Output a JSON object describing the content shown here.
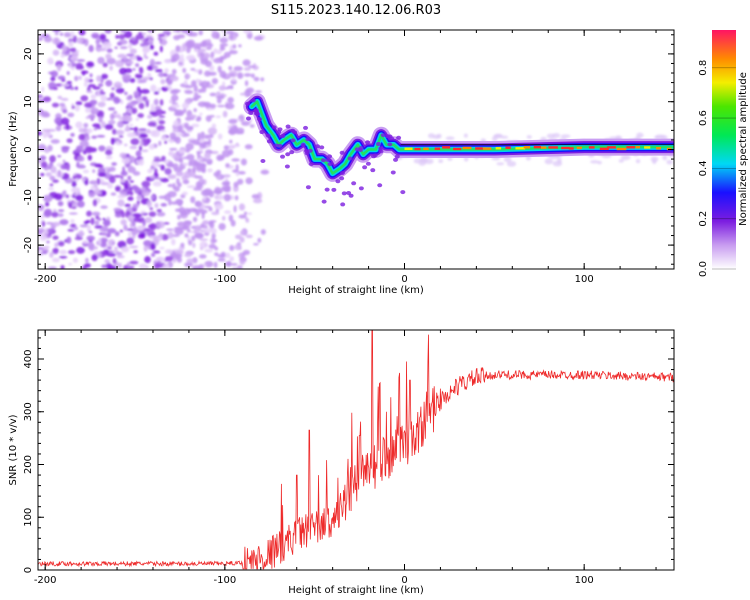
{
  "title": "S115.2023.140.12.06.R03",
  "chart_data": [
    {
      "type": "heatmap",
      "name": "spectrogram",
      "xlabel": "Height of straight line (km)",
      "ylabel": "Frequency (Hz)",
      "xlim": [
        -204,
        150
      ],
      "ylim": [
        -25,
        25
      ],
      "xticks": [
        -200,
        -100,
        0,
        100
      ],
      "yticks": [
        -20,
        -10,
        0,
        10,
        20
      ],
      "colorbar": {
        "label": "Normalized spectral amplitude",
        "range": [
          0.0,
          0.95
        ],
        "ticks": [
          0.0,
          0.2,
          0.4,
          0.6,
          0.8
        ],
        "tick_labels": [
          "0.0",
          "0.2",
          "0.4",
          "0.6",
          "0.8"
        ]
      },
      "noise_region_x": [
        -204,
        -82
      ],
      "trace": [
        {
          "x": -85,
          "y": 9
        },
        {
          "x": -82,
          "y": 10
        },
        {
          "x": -80,
          "y": 8
        },
        {
          "x": -77,
          "y": 5
        },
        {
          "x": -73,
          "y": 3
        },
        {
          "x": -70,
          "y": 1
        },
        {
          "x": -67,
          "y": 2
        },
        {
          "x": -63,
          "y": 3
        },
        {
          "x": -60,
          "y": 1
        },
        {
          "x": -56,
          "y": 2
        },
        {
          "x": -53,
          "y": 1
        },
        {
          "x": -50,
          "y": -2
        },
        {
          "x": -46,
          "y": -2
        },
        {
          "x": -43,
          "y": -3
        },
        {
          "x": -40,
          "y": -5
        },
        {
          "x": -36,
          "y": -4
        },
        {
          "x": -33,
          "y": -3
        },
        {
          "x": -30,
          "y": -1
        },
        {
          "x": -26,
          "y": 1
        },
        {
          "x": -23,
          "y": -1
        },
        {
          "x": -20,
          "y": 0
        },
        {
          "x": -16,
          "y": 0
        },
        {
          "x": -13,
          "y": 3
        },
        {
          "x": -10,
          "y": 1
        },
        {
          "x": -6,
          "y": 1
        },
        {
          "x": -3,
          "y": 0
        },
        {
          "x": 0,
          "y": 0
        },
        {
          "x": 50,
          "y": 0
        },
        {
          "x": 100,
          "y": 0.5
        },
        {
          "x": 150,
          "y": 0.5
        }
      ]
    },
    {
      "type": "line",
      "name": "snr",
      "color": "#ee2a2a",
      "xlabel": "Height of straight line (km)",
      "ylabel": "SNR (10 * v/v)",
      "xlim": [
        -204,
        150
      ],
      "ylim": [
        0,
        455
      ],
      "xticks": [
        -200,
        -100,
        0,
        100
      ],
      "yticks": [
        0,
        100,
        200,
        300,
        400
      ],
      "envelope": [
        {
          "x": -204,
          "y": 12
        },
        {
          "x": -150,
          "y": 12
        },
        {
          "x": -100,
          "y": 12
        },
        {
          "x": -85,
          "y": 15
        },
        {
          "x": -75,
          "y": 30
        },
        {
          "x": -65,
          "y": 55
        },
        {
          "x": -55,
          "y": 75
        },
        {
          "x": -45,
          "y": 85
        },
        {
          "x": -38,
          "y": 100
        },
        {
          "x": -30,
          "y": 145
        },
        {
          "x": -20,
          "y": 190
        },
        {
          "x": -10,
          "y": 215
        },
        {
          "x": 0,
          "y": 235
        },
        {
          "x": 10,
          "y": 275
        },
        {
          "x": 20,
          "y": 320
        },
        {
          "x": 30,
          "y": 350
        },
        {
          "x": 40,
          "y": 365
        },
        {
          "x": 50,
          "y": 370
        },
        {
          "x": 100,
          "y": 370
        },
        {
          "x": 150,
          "y": 365
        }
      ],
      "spikes": [
        {
          "x": -60,
          "y": 180
        },
        {
          "x": -53,
          "y": 265
        },
        {
          "x": -48,
          "y": 180
        },
        {
          "x": -37,
          "y": 175
        },
        {
          "x": -30,
          "y": 195
        },
        {
          "x": -25,
          "y": 255
        },
        {
          "x": -18,
          "y": 455
        },
        {
          "x": -15,
          "y": 280
        },
        {
          "x": -10,
          "y": 300
        },
        {
          "x": -3,
          "y": 365
        },
        {
          "x": 3,
          "y": 360
        }
      ]
    }
  ]
}
